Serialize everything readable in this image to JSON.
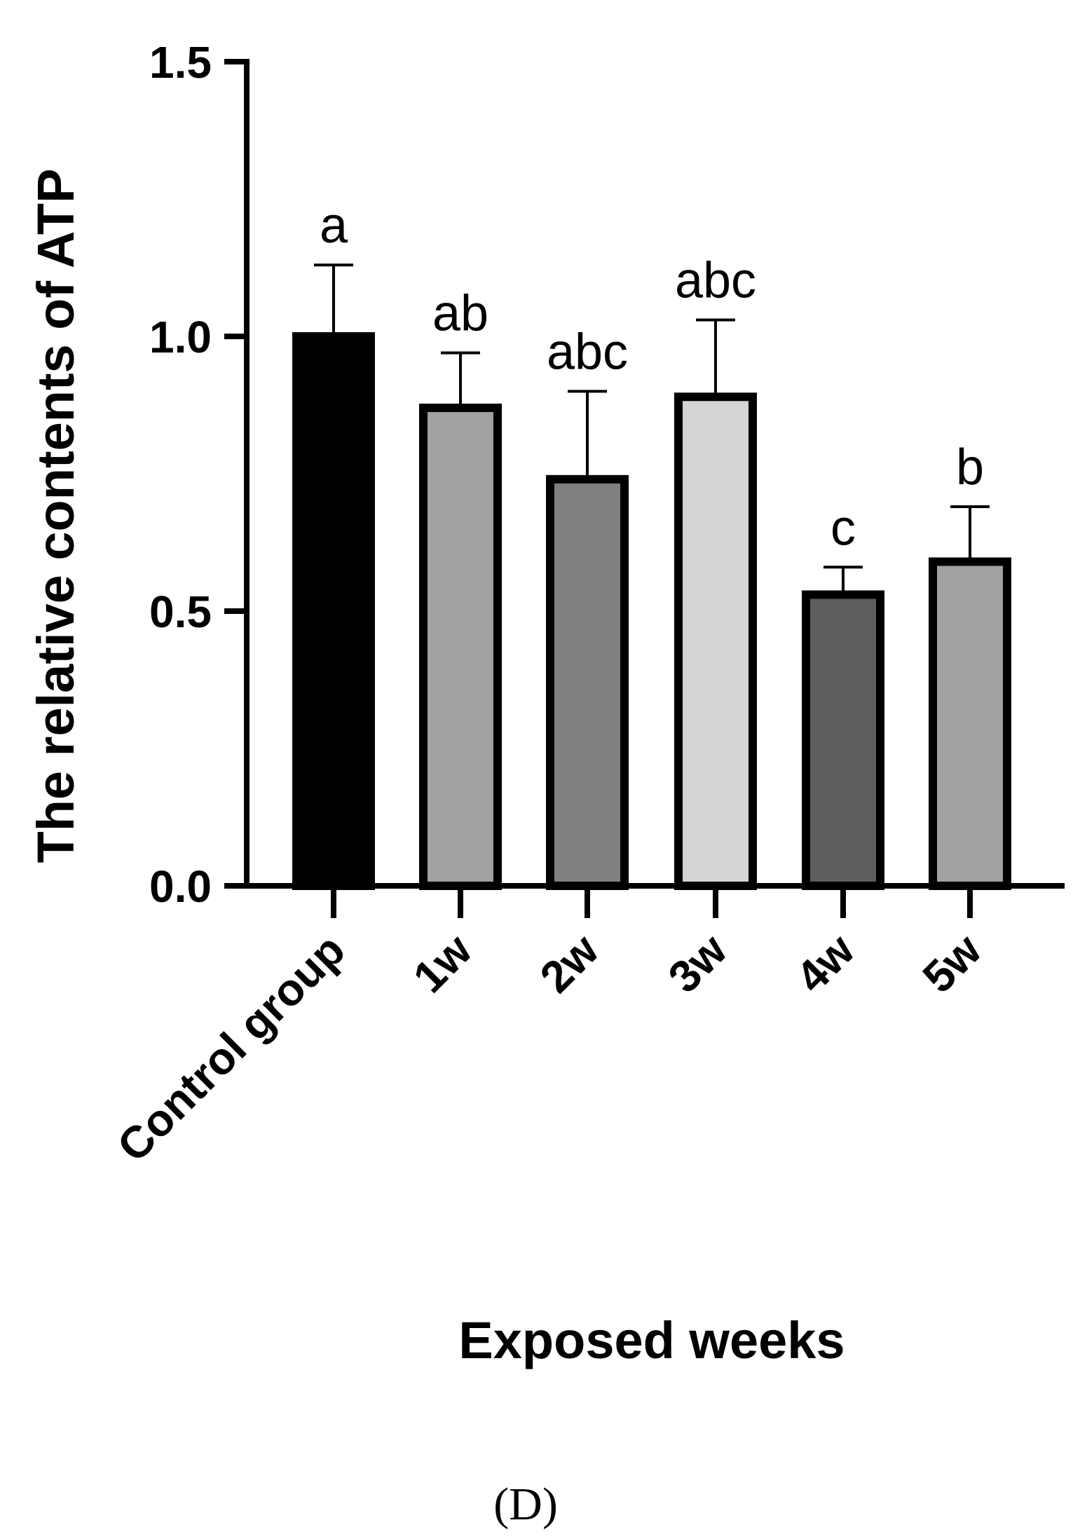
{
  "panel_label": "(D)",
  "chart_data": {
    "type": "bar",
    "title": "",
    "xlabel": "Exposed weeks",
    "ylabel": "The relative contents of ATP",
    "ylim": [
      0,
      1.5
    ],
    "yticks": [
      0.0,
      0.5,
      1.0,
      1.5
    ],
    "ytick_labels": [
      "0.0",
      "0.5",
      "1.0",
      "1.5"
    ],
    "grid": false,
    "legend": "none",
    "categories": [
      "Control group",
      "1w",
      "2w",
      "3w",
      "4w",
      "5w"
    ],
    "values": [
      1.0,
      0.87,
      0.74,
      0.89,
      0.53,
      0.59
    ],
    "error_upper": [
      0.13,
      0.1,
      0.16,
      0.14,
      0.05,
      0.1
    ],
    "significance_letters": [
      "a",
      "ab",
      "abc",
      "abc",
      "c",
      "b"
    ],
    "bar_colors": [
      "#000000",
      "#a1a1a4",
      "#808080",
      "#d4d4d4",
      "#5d5d5d",
      "#a1a1a4"
    ],
    "bar_outline_color": "#000000"
  }
}
